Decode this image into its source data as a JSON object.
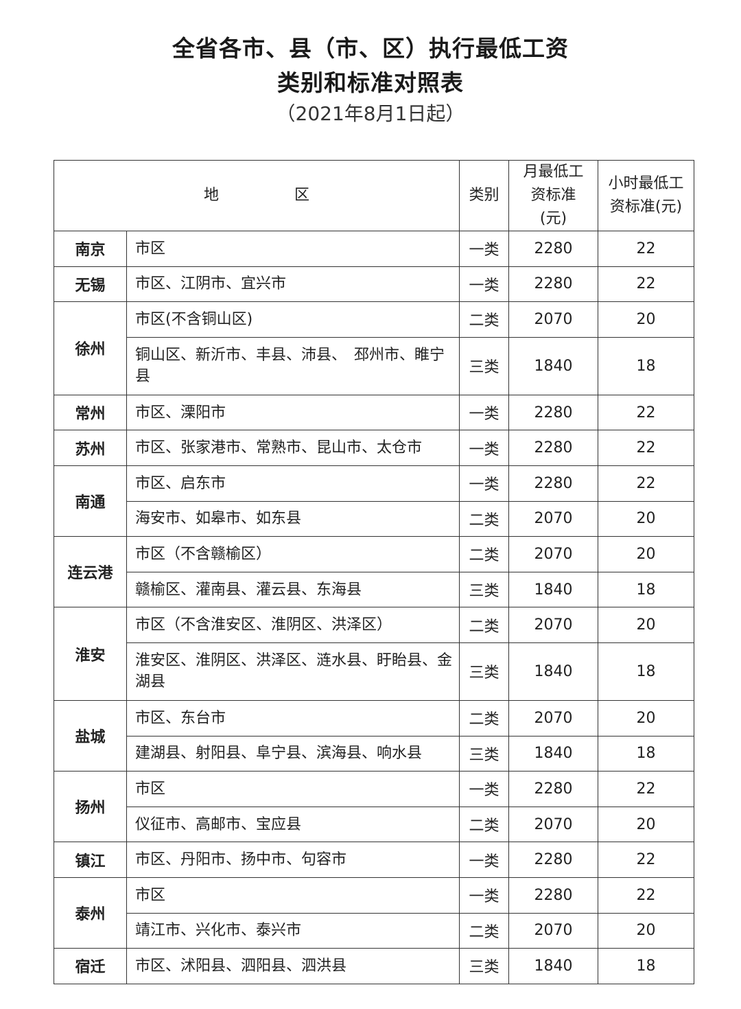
{
  "title_line1": "全省各市、县（市、区）执行最低工资",
  "title_line2": "类别和标准对照表",
  "subtitle": "（2021年8月1日起）",
  "table": {
    "headers": {
      "region": "地　　　　　区",
      "category": "类别",
      "monthly": "月最低工资标准(元)",
      "hourly": "小时最低工资标准(元)"
    },
    "groups": [
      {
        "city": "南京",
        "rows": [
          {
            "area": "市区",
            "category": "一类",
            "monthly": "2280",
            "hourly": "22"
          }
        ]
      },
      {
        "city": "无锡",
        "rows": [
          {
            "area": "市区、江阴市、宜兴市",
            "category": "一类",
            "monthly": "2280",
            "hourly": "22"
          }
        ]
      },
      {
        "city": "徐州",
        "rows": [
          {
            "area": "市区(不含铜山区)",
            "category": "二类",
            "monthly": "2070",
            "hourly": "20"
          },
          {
            "area": "铜山区、新沂市、丰县、沛县、　邳州市、睢宁县",
            "category": "三类",
            "monthly": "1840",
            "hourly": "18"
          }
        ]
      },
      {
        "city": "常州",
        "rows": [
          {
            "area": "市区、溧阳市",
            "category": "一类",
            "monthly": "2280",
            "hourly": "22"
          }
        ]
      },
      {
        "city": "苏州",
        "rows": [
          {
            "area": "市区、张家港市、常熟市、昆山市、太仓市",
            "category": "一类",
            "monthly": "2280",
            "hourly": "22"
          }
        ]
      },
      {
        "city": "南通",
        "rows": [
          {
            "area": "市区、启东市",
            "category": "一类",
            "monthly": "2280",
            "hourly": "22"
          },
          {
            "area": "海安市、如皋市、如东县",
            "category": "二类",
            "monthly": "2070",
            "hourly": "20"
          }
        ]
      },
      {
        "city": "连云港",
        "rows": [
          {
            "area": "市区（不含赣榆区）",
            "category": "二类",
            "monthly": "2070",
            "hourly": "20"
          },
          {
            "area": "赣榆区、灌南县、灌云县、东海县",
            "category": "三类",
            "monthly": "1840",
            "hourly": "18"
          }
        ]
      },
      {
        "city": "淮安",
        "rows": [
          {
            "area": "市区（不含淮安区、淮阴区、洪泽区）",
            "category": "二类",
            "monthly": "2070",
            "hourly": "20"
          },
          {
            "area": "淮安区、淮阴区、洪泽区、涟水县、盱眙县、金湖县",
            "category": "三类",
            "monthly": "1840",
            "hourly": "18"
          }
        ]
      },
      {
        "city": "盐城",
        "rows": [
          {
            "area": "市区、东台市",
            "category": "二类",
            "monthly": "2070",
            "hourly": "20"
          },
          {
            "area": "建湖县、射阳县、阜宁县、滨海县、响水县",
            "category": "三类",
            "monthly": "1840",
            "hourly": "18"
          }
        ]
      },
      {
        "city": "扬州",
        "rows": [
          {
            "area": "市区",
            "category": "一类",
            "monthly": "2280",
            "hourly": "22"
          },
          {
            "area": "仪征市、高邮市、宝应县",
            "category": "二类",
            "monthly": "2070",
            "hourly": "20"
          }
        ]
      },
      {
        "city": "镇江",
        "rows": [
          {
            "area": "市区、丹阳市、扬中市、句容市",
            "category": "一类",
            "monthly": "2280",
            "hourly": "22"
          }
        ]
      },
      {
        "city": "泰州",
        "rows": [
          {
            "area": "市区",
            "category": "一类",
            "monthly": "2280",
            "hourly": "22"
          },
          {
            "area": "靖江市、兴化市、泰兴市",
            "category": "二类",
            "monthly": "2070",
            "hourly": "20"
          }
        ]
      },
      {
        "city": "宿迁",
        "rows": [
          {
            "area": "市区、沭阳县、泗阳县、泗洪县",
            "category": "三类",
            "monthly": "1840",
            "hourly": "18"
          }
        ]
      }
    ]
  }
}
